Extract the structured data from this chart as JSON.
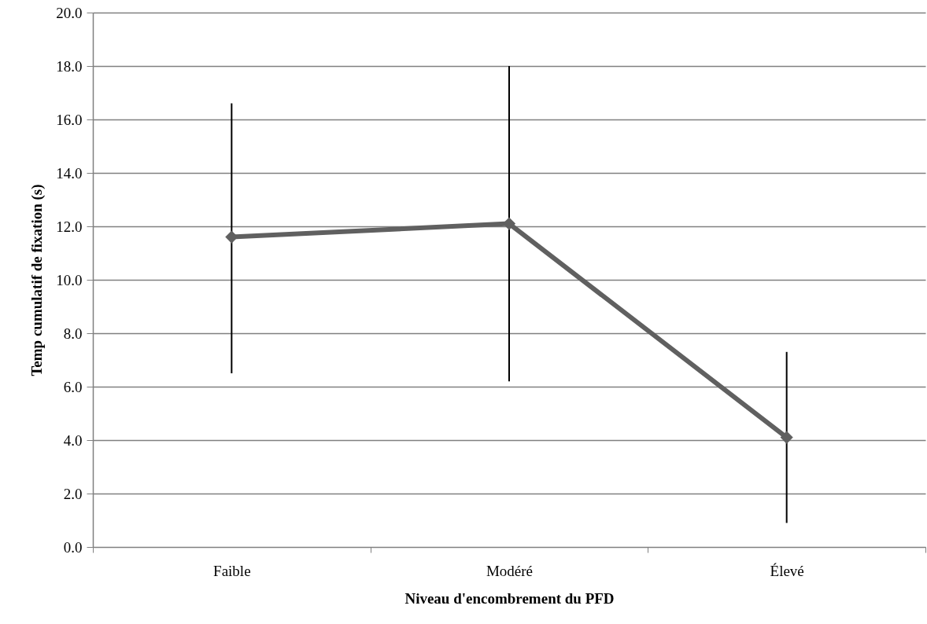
{
  "chart_data": {
    "type": "line",
    "xlabel": "Niveau d'encombrement du PFD",
    "ylabel": "Temp cumulatif de fixation (s)",
    "categories": [
      "Faible",
      "Modéré",
      "Élevé"
    ],
    "series": [
      {
        "color": "#606060",
        "values": [
          11.6,
          12.1,
          4.1
        ],
        "errors": [
          [
            6.5,
            16.6
          ],
          [
            6.2,
            18.0
          ],
          [
            0.9,
            7.3
          ]
        ]
      }
    ],
    "ylim": [
      0,
      20
    ],
    "yticks": [
      {
        "value": 0,
        "label": "0.0"
      },
      {
        "value": 2,
        "label": "2.0"
      },
      {
        "value": 4,
        "label": "4.0"
      },
      {
        "value": 6,
        "label": "6.0"
      },
      {
        "value": 8,
        "label": "8.0"
      },
      {
        "value": 10,
        "label": "10.0"
      },
      {
        "value": 12,
        "label": "12.0"
      },
      {
        "value": 14,
        "label": "14.0"
      },
      {
        "value": 16,
        "label": "16.0"
      },
      {
        "value": 18,
        "label": "18.0"
      },
      {
        "value": 20,
        "label": "20.0"
      }
    ],
    "grid": "y",
    "marker": "diamond",
    "line_style": "solid"
  }
}
